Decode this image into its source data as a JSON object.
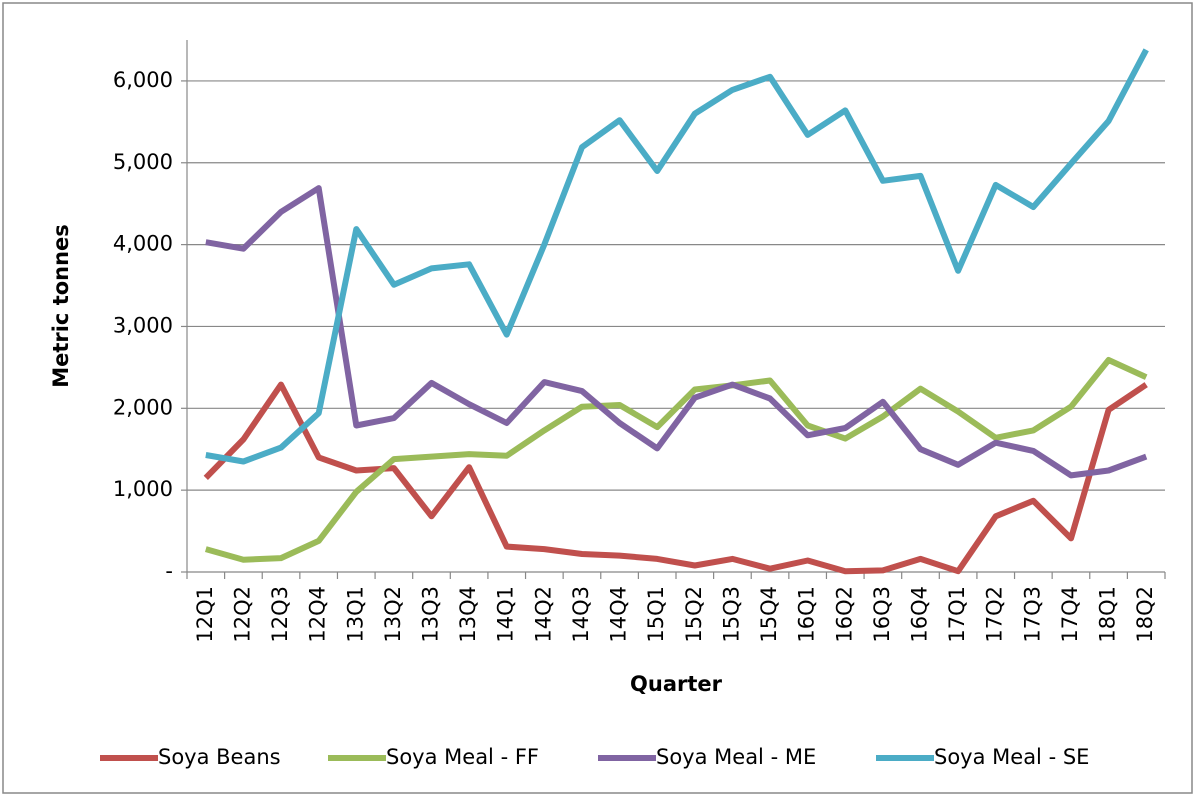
{
  "chart_data": {
    "type": "line",
    "y_label": "Metric tonnes",
    "x_label": "Quarter",
    "categories": [
      "12Q1",
      "12Q2",
      "12Q3",
      "12Q4",
      "13Q1",
      "13Q2",
      "13Q3",
      "13Q4",
      "14Q1",
      "14Q2",
      "14Q3",
      "14Q4",
      "15Q1",
      "15Q2",
      "15Q3",
      "15Q4",
      "16Q1",
      "16Q2",
      "16Q3",
      "16Q4",
      "17Q1",
      "17Q2",
      "17Q3",
      "17Q4",
      "18Q1",
      "18Q2"
    ],
    "series": [
      {
        "name": "Soya Beans",
        "color": "#c0504d",
        "values": [
          1150,
          1620,
          2290,
          1400,
          1240,
          1270,
          680,
          1280,
          310,
          280,
          220,
          200,
          160,
          80,
          160,
          40,
          140,
          10,
          20,
          160,
          10,
          680,
          870,
          410,
          1980,
          2290
        ]
      },
      {
        "name": "Soya Meal - FF",
        "color": "#9bbb59",
        "values": [
          280,
          150,
          170,
          380,
          980,
          1380,
          1410,
          1440,
          1420,
          1730,
          2020,
          2040,
          1770,
          2230,
          2280,
          2340,
          1790,
          1630,
          1900,
          2240,
          1960,
          1640,
          1730,
          2020,
          2590,
          2380
        ]
      },
      {
        "name": "Soya Meal - ME",
        "color": "#8064a2",
        "values": [
          4030,
          3950,
          4400,
          4690,
          1790,
          1880,
          2310,
          2050,
          1820,
          2320,
          2210,
          1820,
          1510,
          2130,
          2290,
          2120,
          1670,
          1760,
          2080,
          1500,
          1310,
          1580,
          1480,
          1180,
          1240,
          1410
        ]
      },
      {
        "name": "Soya Meal - SE",
        "color": "#4bacc6",
        "values": [
          1430,
          1350,
          1520,
          1940,
          4190,
          3510,
          3710,
          3760,
          2900,
          4000,
          5190,
          5520,
          4900,
          5600,
          5890,
          6050,
          5340,
          5640,
          4780,
          4840,
          3680,
          4730,
          4460,
          4990,
          5510,
          6380
        ]
      }
    ],
    "ylim": [
      0,
      6500
    ],
    "yticks": [
      {
        "value": 0,
        "label": "-"
      },
      {
        "value": 1000,
        "label": "1,000"
      },
      {
        "value": 2000,
        "label": "2,000"
      },
      {
        "value": 3000,
        "label": "3,000"
      },
      {
        "value": 4000,
        "label": "4,000"
      },
      {
        "value": 5000,
        "label": "5,000"
      },
      {
        "value": 6000,
        "label": "6,000"
      }
    ],
    "grid": true,
    "legend": "bottom"
  }
}
